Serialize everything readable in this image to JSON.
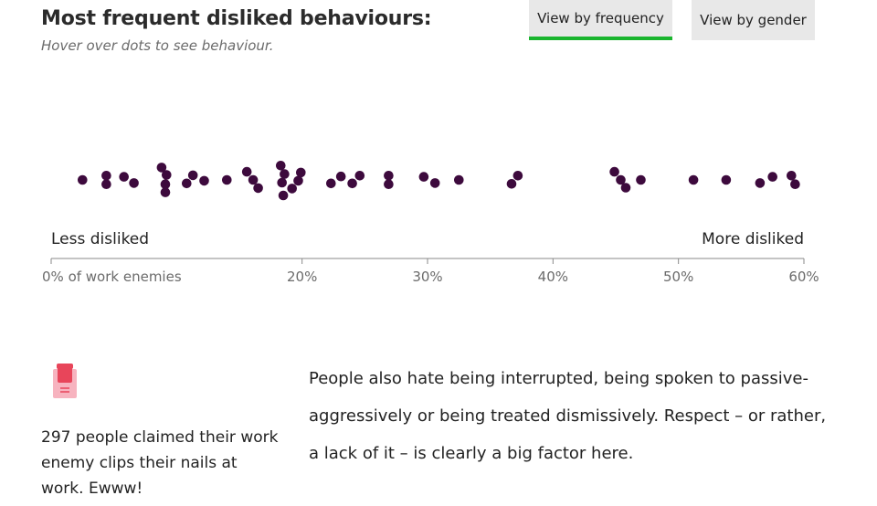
{
  "header": {
    "title": "Most frequent disliked behaviours:",
    "subtitle": "Hover over dots to see behaviour."
  },
  "tabs": [
    {
      "label": "View by frequency",
      "active": true
    },
    {
      "label": "View by gender",
      "active": false
    }
  ],
  "colors": {
    "dot": "#3d0a3d",
    "active_tab_underline": "#1ab52e",
    "tab_bg": "#e8e8e8",
    "icon_accent": "#e8455a"
  },
  "chart_data": {
    "type": "scatter",
    "xlabel": "",
    "ylabel": "",
    "xlim": [
      0,
      60
    ],
    "tick_values": [
      0,
      20,
      30,
      40,
      50,
      60
    ],
    "tick_labels": [
      "0% of work enemies",
      "20%",
      "30%",
      "40%",
      "50%",
      "60%"
    ],
    "left_annotation": "Less disliked",
    "right_annotation": "More disliked",
    "points": [
      {
        "x": 2.5,
        "y": 0
      },
      {
        "x": 4.4,
        "y": 0.55
      },
      {
        "x": 4.4,
        "y": -0.55
      },
      {
        "x": 5.8,
        "y": 0.4
      },
      {
        "x": 6.6,
        "y": -0.4
      },
      {
        "x": 8.8,
        "y": 1.6
      },
      {
        "x": 9.2,
        "y": 0.65
      },
      {
        "x": 9.1,
        "y": -0.55
      },
      {
        "x": 9.1,
        "y": -1.6
      },
      {
        "x": 10.8,
        "y": -0.45
      },
      {
        "x": 11.3,
        "y": 0.6
      },
      {
        "x": 12.2,
        "y": -0.1
      },
      {
        "x": 14.0,
        "y": 0
      },
      {
        "x": 15.6,
        "y": 1.05
      },
      {
        "x": 16.1,
        "y": 0
      },
      {
        "x": 16.5,
        "y": -1.05
      },
      {
        "x": 18.3,
        "y": 1.85
      },
      {
        "x": 18.6,
        "y": 0.75
      },
      {
        "x": 18.4,
        "y": -0.35
      },
      {
        "x": 18.5,
        "y": -2.0
      },
      {
        "x": 19.2,
        "y": -1.1
      },
      {
        "x": 19.7,
        "y": -0.1
      },
      {
        "x": 19.9,
        "y": 0.95
      },
      {
        "x": 22.3,
        "y": -0.45
      },
      {
        "x": 23.1,
        "y": 0.45
      },
      {
        "x": 24.0,
        "y": -0.45
      },
      {
        "x": 24.6,
        "y": 0.55
      },
      {
        "x": 26.9,
        "y": 0.55
      },
      {
        "x": 26.9,
        "y": -0.55
      },
      {
        "x": 29.7,
        "y": 0.4
      },
      {
        "x": 30.6,
        "y": -0.4
      },
      {
        "x": 32.5,
        "y": 0
      },
      {
        "x": 36.7,
        "y": -0.5
      },
      {
        "x": 37.2,
        "y": 0.55
      },
      {
        "x": 44.9,
        "y": 1.05
      },
      {
        "x": 45.4,
        "y": 0
      },
      {
        "x": 45.8,
        "y": -1.0
      },
      {
        "x": 47.0,
        "y": 0
      },
      {
        "x": 51.2,
        "y": 0
      },
      {
        "x": 53.8,
        "y": 0
      },
      {
        "x": 56.5,
        "y": -0.4
      },
      {
        "x": 57.5,
        "y": 0.4
      },
      {
        "x": 59.0,
        "y": 0.55
      },
      {
        "x": 59.3,
        "y": -0.55
      }
    ]
  },
  "side_note": "297 people claimed their work enemy clips their nails at work. Ewww!",
  "paragraph": "People also hate being interrupted, being spoken to passive-aggressively or being treated dismissively. Respect – or rather, a lack of it – is clearly a big factor here."
}
